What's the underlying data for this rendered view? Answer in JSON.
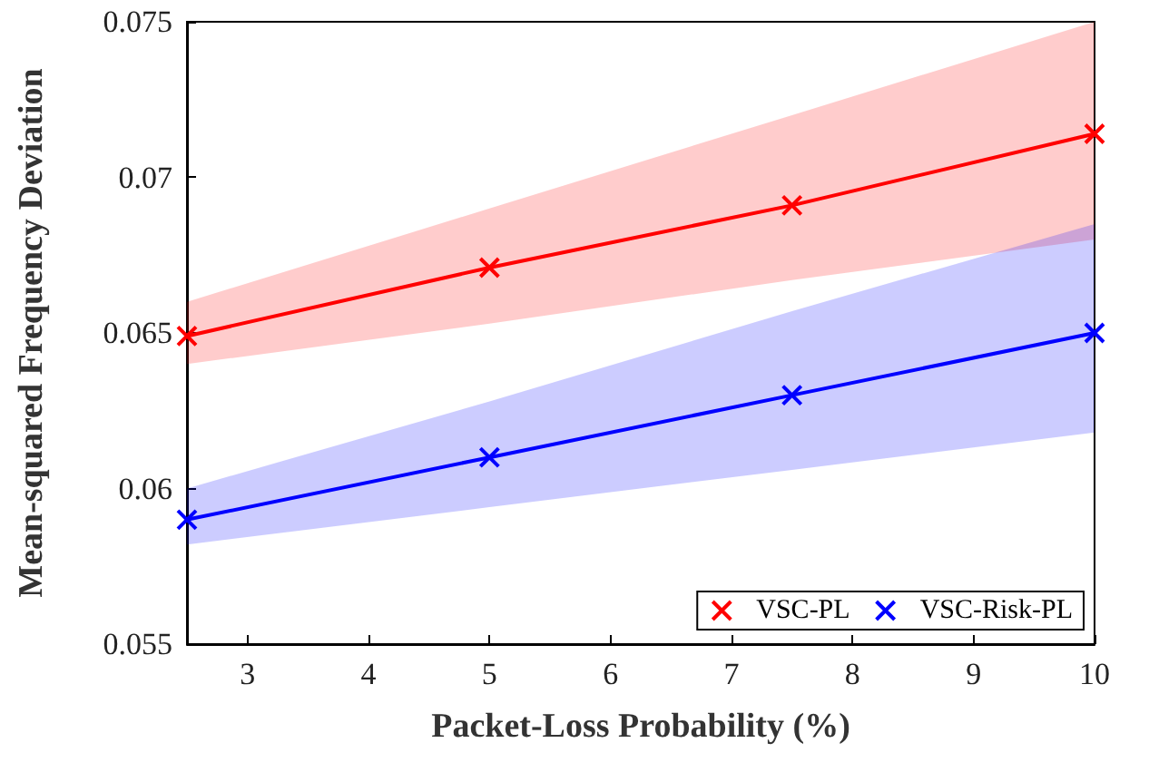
{
  "chart_data": {
    "type": "line",
    "xlabel": "Packet-Loss Probability (%)",
    "ylabel": "Mean-squared Frequency Deviation",
    "x": [
      2.5,
      5,
      7.5,
      10
    ],
    "series": [
      {
        "name": "VSC-PL",
        "color": "#ff0000",
        "values": [
          0.0649,
          0.0671,
          0.0691,
          0.0714
        ],
        "lower": [
          0.064,
          0.0653,
          0.0667,
          0.068
        ],
        "upper": [
          0.066,
          0.069,
          0.072,
          0.075
        ]
      },
      {
        "name": "VSC-Risk-PL",
        "color": "#0000ff",
        "values": [
          0.059,
          0.061,
          0.063,
          0.065
        ],
        "lower": [
          0.0582,
          0.0594,
          0.0606,
          0.0618
        ],
        "upper": [
          0.06,
          0.0628,
          0.0657,
          0.0685
        ]
      }
    ],
    "xlim": [
      2.5,
      10
    ],
    "xticks": [
      3,
      4,
      5,
      6,
      7,
      8,
      9,
      10
    ],
    "ylim": [
      0.055,
      0.075
    ],
    "yticks": [
      0.055,
      0.06,
      0.065,
      0.07,
      0.075
    ],
    "grid": false,
    "legend": "bottom right",
    "marker": "cross",
    "line_style": "solid"
  }
}
